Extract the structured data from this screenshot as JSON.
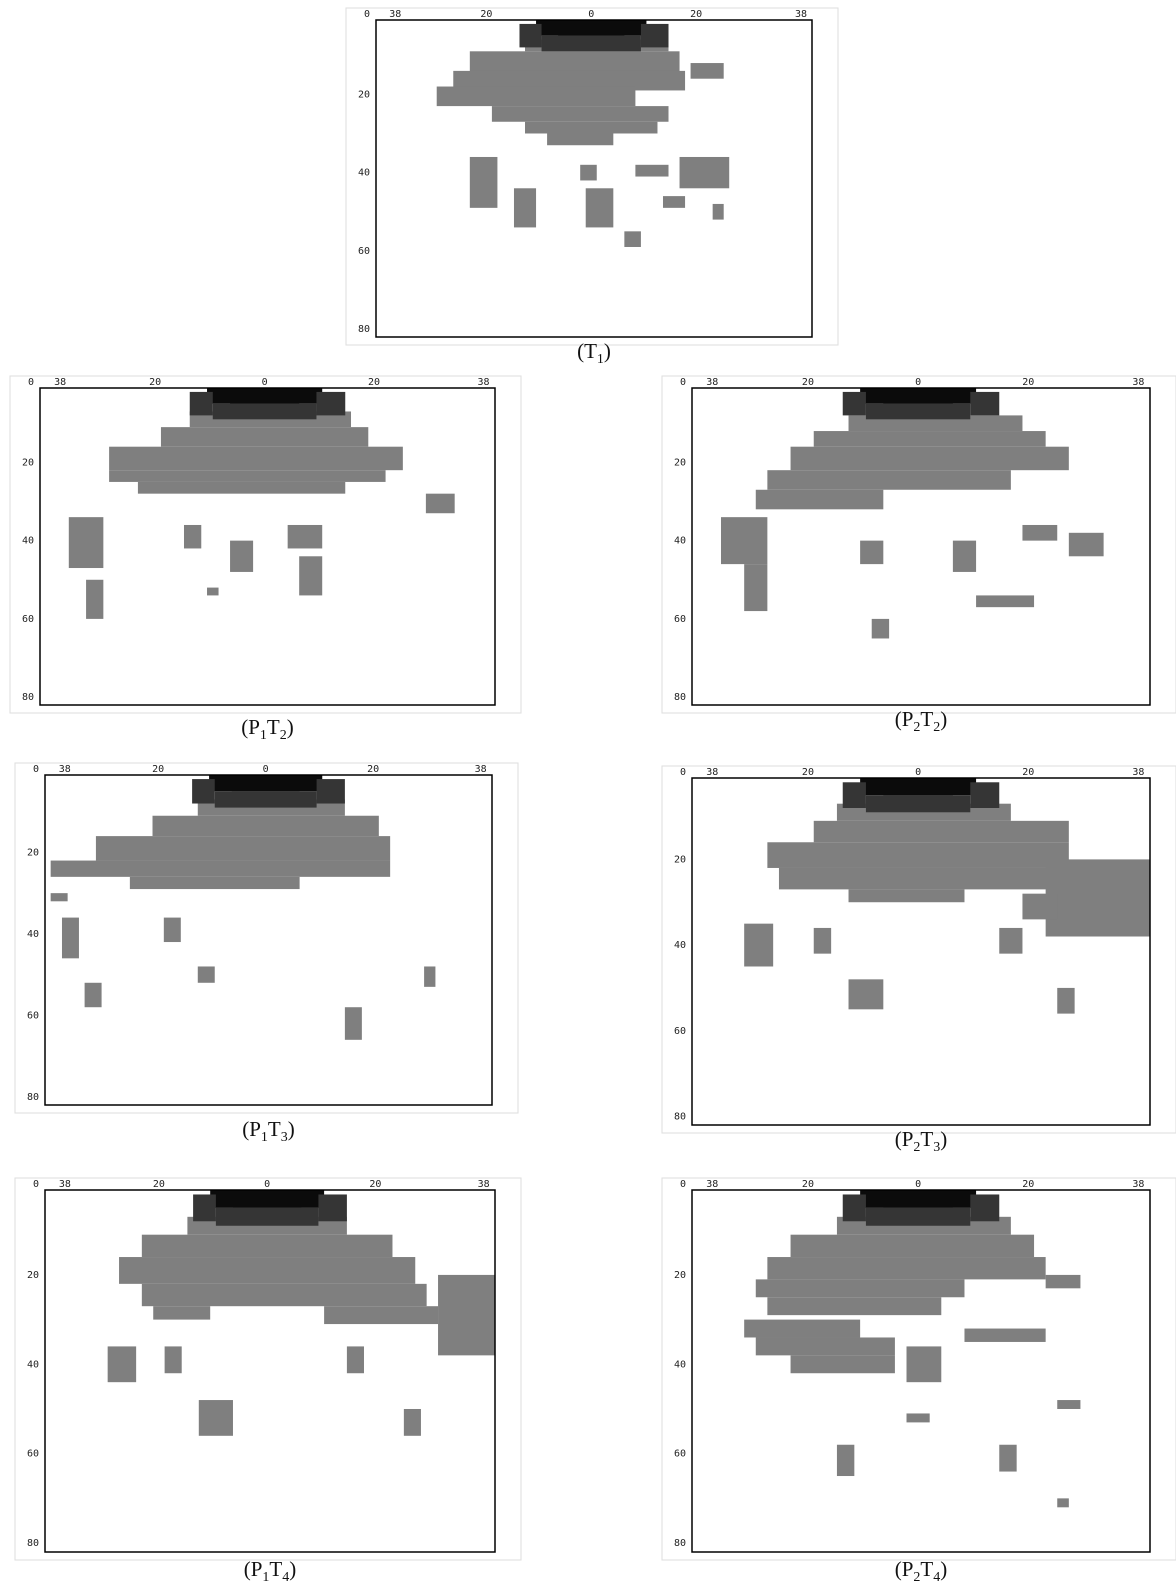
{
  "axes": {
    "corner": "0",
    "top": [
      "38",
      "20",
      "0",
      "20",
      "38"
    ],
    "left": [
      "20",
      "40",
      "60",
      "80"
    ]
  },
  "panels": [
    {
      "caption": [
        "(T",
        "1",
        ")"
      ]
    },
    {
      "caption": [
        "(P",
        "1",
        "T",
        "2",
        ")"
      ]
    },
    {
      "caption": [
        "(P",
        "2",
        "T",
        "2",
        ")"
      ]
    },
    {
      "caption": [
        "(P",
        "1",
        "T",
        "3",
        ")"
      ]
    },
    {
      "caption": [
        "(P",
        "2",
        "T",
        "3",
        ")"
      ]
    },
    {
      "caption": [
        "(P",
        "1",
        "T",
        "4",
        ")"
      ]
    },
    {
      "caption": [
        "(P",
        "2",
        "T",
        "4",
        ")"
      ]
    }
  ]
}
